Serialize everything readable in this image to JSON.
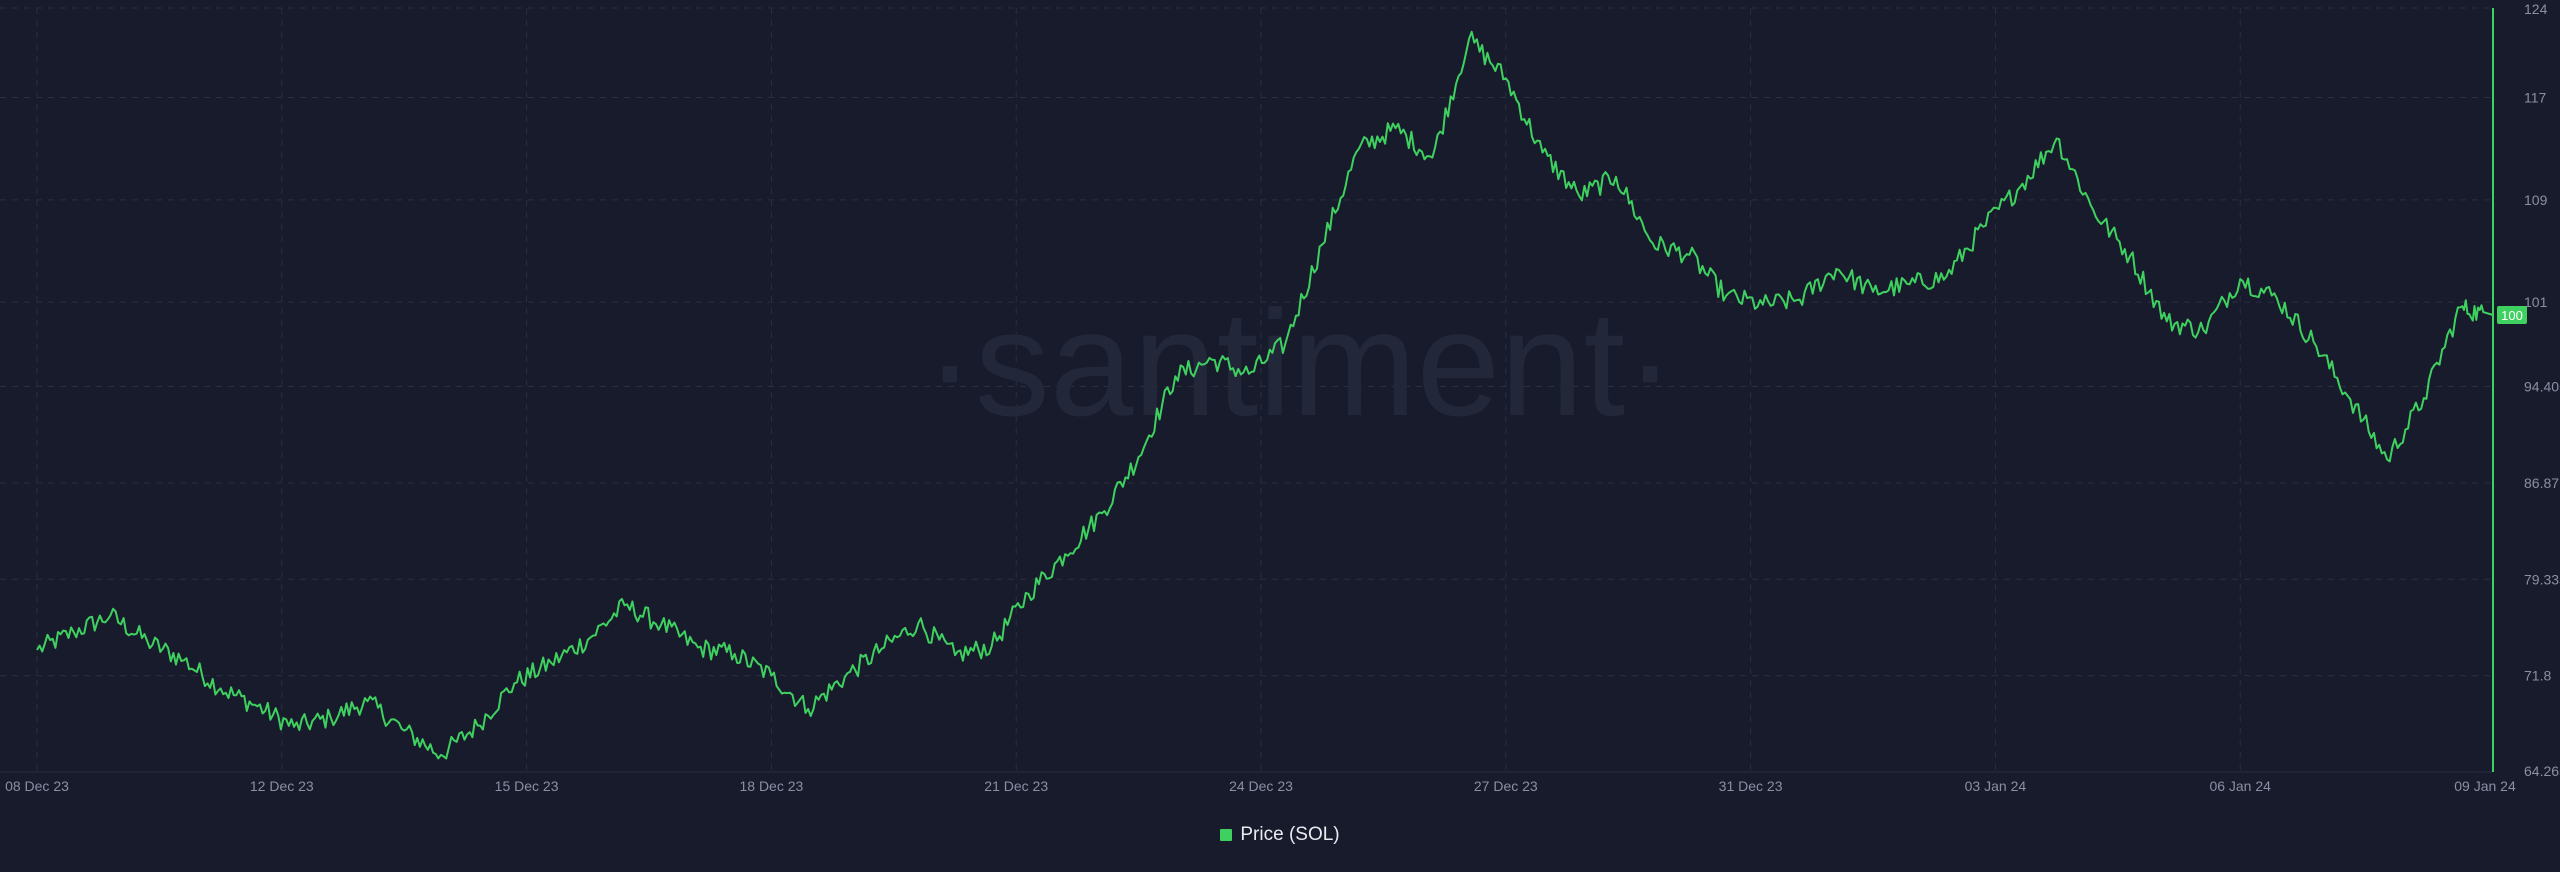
{
  "watermark": "·santiment·",
  "current_price_label": "100",
  "colors": {
    "background": "#181b2b",
    "line": "#3fd160",
    "grid": "#2a2e40",
    "axis_text": "#8b8fa3",
    "watermark": "#23273a"
  },
  "chart_data": {
    "type": "line",
    "title": "",
    "xlabel": "",
    "ylabel": "",
    "x_tick_labels": [
      "08 Dec 23",
      "12 Dec 23",
      "15 Dec 23",
      "18 Dec 23",
      "21 Dec 23",
      "24 Dec 23",
      "27 Dec 23",
      "31 Dec 23",
      "03 Jan 24",
      "06 Jan 24",
      "09 Jan 24"
    ],
    "y_tick_labels": [
      "124",
      "117",
      "109",
      "101",
      "94.405",
      "86.87",
      "79.335",
      "71.8",
      "64.265"
    ],
    "ylim": [
      64.265,
      124
    ],
    "grid": true,
    "legend_position": "bottom-center",
    "series": [
      {
        "name": "Price (SOL)",
        "color": "#3fd160",
        "x_label_index": [
          0,
          0.15,
          0.3,
          0.45,
          0.6,
          0.75,
          0.9,
          1.05,
          1.2,
          1.35,
          1.5,
          1.65,
          1.8,
          1.95,
          2.1,
          2.25,
          2.4,
          2.55,
          2.7,
          2.85,
          3,
          3.15,
          3.3,
          3.45,
          3.6,
          3.75,
          3.9,
          4.05,
          4.2,
          4.35,
          4.5,
          4.65,
          4.8,
          4.95,
          5.1,
          5.25,
          5.4,
          5.55,
          5.7,
          5.85,
          6,
          6.15,
          6.3,
          6.45,
          6.6,
          6.75,
          6.9,
          7.05,
          7.2,
          7.35,
          7.5,
          7.65,
          7.8,
          7.95,
          8.1,
          8.25,
          8.4,
          8.55,
          8.7,
          8.85,
          9,
          9.15,
          9.3,
          9.45,
          9.6,
          9.75,
          9.9,
          10
        ],
        "values": [
          73.8,
          75.2,
          76.5,
          74.5,
          73.0,
          70.8,
          69.4,
          67.8,
          68.5,
          69.8,
          67.5,
          65.6,
          67.9,
          71.2,
          72.8,
          74.6,
          77.3,
          75.8,
          74.0,
          73.5,
          71.8,
          69.2,
          71.7,
          73.9,
          75.9,
          73.4,
          74.1,
          78.2,
          81.3,
          84.5,
          88.9,
          95.2,
          96.5,
          95.4,
          97.8,
          105.5,
          113.0,
          114.6,
          112.3,
          121.6,
          118.5,
          112.7,
          109.3,
          110.8,
          105.6,
          104.7,
          101.5,
          100.8,
          101.2,
          103.6,
          101.8,
          102.4,
          103.0,
          106.9,
          110.0,
          113.8,
          108.2,
          104.6,
          99.5,
          98.8,
          102.8,
          101.3,
          97.9,
          93.4,
          88.7,
          93.5,
          100.6,
          100.0
        ]
      }
    ]
  }
}
